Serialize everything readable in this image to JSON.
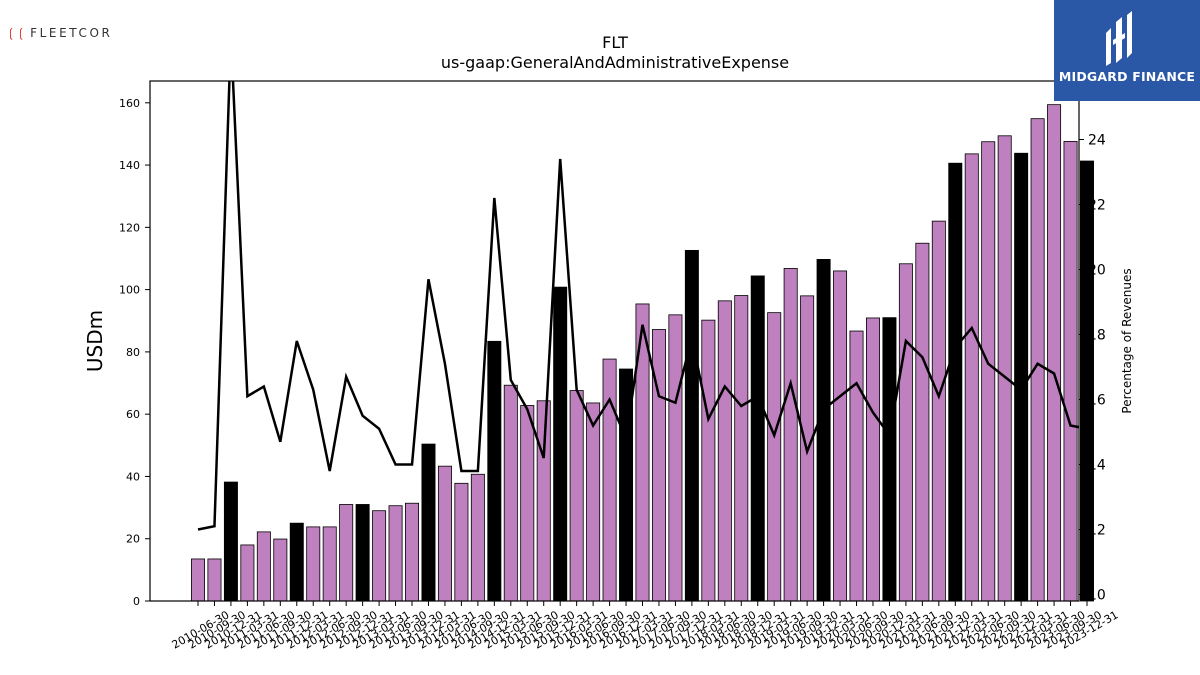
{
  "logos": {
    "left_text": "FLEETCOR",
    "right_text": "MIDGARD FINANCE",
    "right_bg": "#2a57a6"
  },
  "chart_data": {
    "type": "bar",
    "title": "FLT",
    "subtitle": "us-gaap:GeneralAndAdministrativeExpense",
    "ylabel": "USDm",
    "y2label": "Percentage of Revenues",
    "ylim": [
      0,
      167
    ],
    "y2lim": [
      9.8,
      25.8
    ],
    "yticks": [
      0,
      20,
      40,
      60,
      80,
      100,
      120,
      140,
      160
    ],
    "y2ticks": [
      10,
      12,
      14,
      16,
      18,
      20,
      22,
      24
    ],
    "grid": false,
    "colors": {
      "quarter": "#bf80bf",
      "annual": "#000000",
      "line": "#000000"
    },
    "categories": [
      "2010-06-30",
      "2010-09-30",
      "2010-12-31",
      "2011-03-31",
      "2011-06-30",
      "2011-09-30",
      "2011-12-31",
      "2012-03-31",
      "2012-06-30",
      "2012-09-30",
      "2012-12-31",
      "2013-03-31",
      "2013-06-30",
      "2013-09-30",
      "2013-12-31",
      "2014-03-31",
      "2014-06-30",
      "2014-09-30",
      "2014-12-31",
      "2015-03-31",
      "2015-06-30",
      "2015-09-30",
      "2015-12-31",
      "2016-03-31",
      "2016-06-30",
      "2016-09-30",
      "2016-12-31",
      "2017-03-31",
      "2017-06-30",
      "2017-09-30",
      "2017-12-31",
      "2018-03-31",
      "2018-06-30",
      "2018-09-30",
      "2018-12-31",
      "2019-03-31",
      "2019-06-30",
      "2019-09-30",
      "2019-12-31",
      "2020-03-31",
      "2020-06-30",
      "2020-09-30",
      "2020-12-31",
      "2021-03-31",
      "2021-06-30",
      "2021-09-30",
      "2021-12-31",
      "2022-03-31",
      "2022-06-30",
      "2022-09-30",
      "2022-12-31",
      "2023-03-31",
      "2023-06-30",
      "2023-09-30",
      "2023-12-31"
    ],
    "bar_kind": [
      "q",
      "q",
      "a",
      "q",
      "q",
      "q",
      "a",
      "q",
      "q",
      "q",
      "a",
      "q",
      "q",
      "q",
      "a",
      "q",
      "q",
      "q",
      "a",
      "q",
      "q",
      "q",
      "a",
      "q",
      "q",
      "q",
      "a",
      "q",
      "q",
      "q",
      "a",
      "q",
      "q",
      "q",
      "a",
      "q",
      "q",
      "q",
      "a",
      "q",
      "q",
      "q",
      "a",
      "q",
      "q",
      "q",
      "a",
      "q",
      "q",
      "q",
      "a",
      "q",
      "q",
      "q",
      "a"
    ],
    "series": [
      {
        "name": "",
        "axis": "left",
        "kind": "bar",
        "values": [
          13.5,
          13.5,
          38.2,
          18.0,
          22.2,
          19.9,
          25.0,
          23.8,
          23.8,
          31.0,
          31.0,
          29.0,
          30.6,
          31.4,
          50.4,
          43.3,
          37.8,
          40.7,
          83.4,
          69.3,
          62.8,
          64.3,
          100.8,
          67.6,
          63.6,
          77.7,
          74.5,
          95.4,
          87.2,
          91.9,
          112.6,
          90.2,
          96.4,
          98.1,
          104.4,
          92.6,
          106.8,
          98.0,
          109.7,
          106.0,
          86.7,
          90.9,
          91.0,
          108.3,
          114.9,
          122.0,
          140.6,
          143.6,
          147.5,
          149.4,
          143.8,
          154.9,
          159.4,
          147.6,
          141.3
        ]
      },
      {
        "name": "",
        "axis": "right",
        "kind": "line",
        "values": [
          12.0,
          12.1,
          27.2,
          16.1,
          16.4,
          14.7,
          17.8,
          16.3,
          13.8,
          16.7,
          15.5,
          15.1,
          14.0,
          14.0,
          19.7,
          17.1,
          13.8,
          13.8,
          22.2,
          16.6,
          15.7,
          14.2,
          23.4,
          16.3,
          15.2,
          16.0,
          14.8,
          18.3,
          16.1,
          15.9,
          17.9,
          15.4,
          16.4,
          15.8,
          16.1,
          14.9,
          16.5,
          14.4,
          15.7,
          16.1,
          16.5,
          15.6,
          14.9,
          17.8,
          17.3,
          16.1,
          17.6,
          18.2,
          17.1,
          16.7,
          16.3,
          17.1,
          16.8,
          15.2,
          15.1
        ]
      }
    ]
  }
}
